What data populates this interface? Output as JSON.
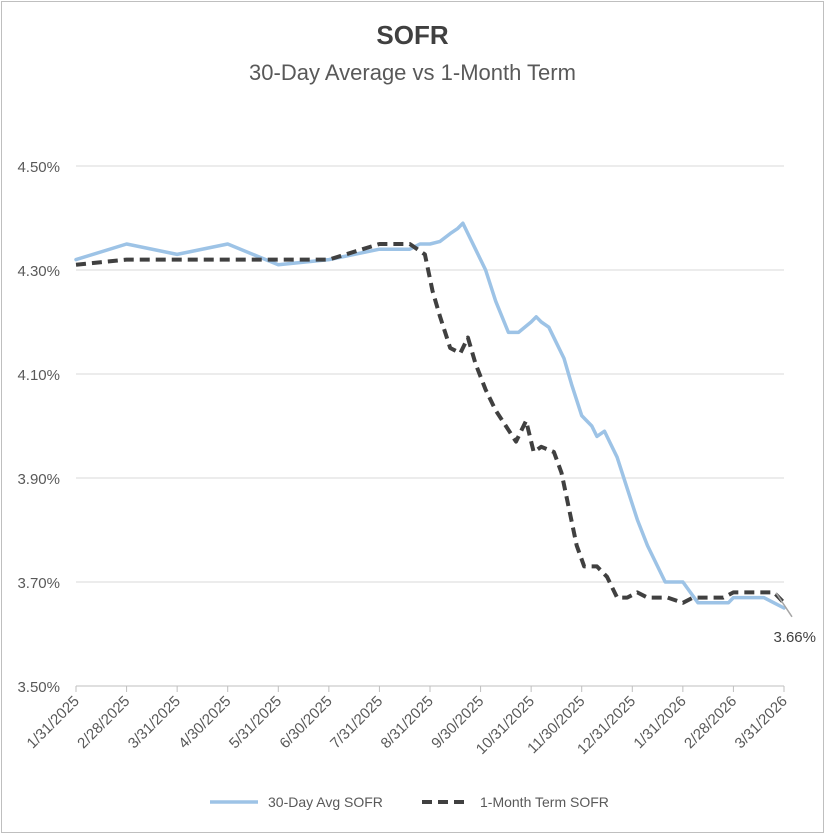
{
  "chart_data": {
    "type": "line",
    "title": "SOFR",
    "subtitle": "30-Day Average vs 1-Month Term",
    "ylim": [
      3.5,
      4.5
    ],
    "yticks": [
      3.5,
      3.7,
      3.9,
      4.1,
      4.3,
      4.5
    ],
    "ytick_labels": [
      "3.50%",
      "3.70%",
      "3.90%",
      "4.10%",
      "4.30%",
      "4.50%"
    ],
    "xlim": [
      0,
      14
    ],
    "xtick_labels": [
      "1/31/2025",
      "2/28/2025",
      "3/31/2025",
      "4/30/2025",
      "5/31/2025",
      "6/30/2025",
      "7/31/2025",
      "8/31/2025",
      "9/30/2025",
      "10/31/2025",
      "11/30/2025",
      "12/31/2025",
      "1/31/2026",
      "2/28/2026",
      "3/31/2026"
    ],
    "grid": true,
    "legend_position": "bottom",
    "annotation": {
      "text": "3.66%",
      "x": 14,
      "y": 3.66
    },
    "series": [
      {
        "name": "30-Day Avg SOFR",
        "color": "#9dc3e6",
        "style": "solid",
        "points": [
          [
            0,
            4.32
          ],
          [
            1,
            4.35
          ],
          [
            2,
            4.33
          ],
          [
            3,
            4.35
          ],
          [
            4,
            4.31
          ],
          [
            5,
            4.32
          ],
          [
            6,
            4.34
          ],
          [
            6.6,
            4.34
          ],
          [
            6.8,
            4.35
          ],
          [
            7.0,
            4.35
          ],
          [
            7.2,
            4.355
          ],
          [
            7.4,
            4.37
          ],
          [
            7.55,
            4.38
          ],
          [
            7.65,
            4.39
          ],
          [
            7.75,
            4.37
          ],
          [
            7.9,
            4.34
          ],
          [
            8.1,
            4.3
          ],
          [
            8.3,
            4.24
          ],
          [
            8.55,
            4.18
          ],
          [
            8.75,
            4.18
          ],
          [
            9.0,
            4.2
          ],
          [
            9.1,
            4.21
          ],
          [
            9.2,
            4.2
          ],
          [
            9.35,
            4.19
          ],
          [
            9.5,
            4.16
          ],
          [
            9.65,
            4.13
          ],
          [
            9.8,
            4.08
          ],
          [
            10.0,
            4.02
          ],
          [
            10.2,
            4.0
          ],
          [
            10.3,
            3.98
          ],
          [
            10.45,
            3.99
          ],
          [
            10.55,
            3.97
          ],
          [
            10.7,
            3.94
          ],
          [
            10.9,
            3.88
          ],
          [
            11.1,
            3.82
          ],
          [
            11.3,
            3.77
          ],
          [
            11.5,
            3.73
          ],
          [
            11.65,
            3.7
          ],
          [
            11.8,
            3.7
          ],
          [
            12.0,
            3.7
          ],
          [
            12.15,
            3.68
          ],
          [
            12.3,
            3.66
          ],
          [
            12.6,
            3.66
          ],
          [
            12.9,
            3.66
          ],
          [
            13.0,
            3.67
          ],
          [
            13.3,
            3.67
          ],
          [
            13.6,
            3.67
          ],
          [
            13.8,
            3.66
          ],
          [
            14.0,
            3.65
          ]
        ]
      },
      {
        "name": "1-Month Term SOFR",
        "color": "#404040",
        "style": "dashed",
        "points": [
          [
            0,
            4.31
          ],
          [
            1,
            4.32
          ],
          [
            2,
            4.32
          ],
          [
            3,
            4.32
          ],
          [
            4,
            4.32
          ],
          [
            5,
            4.32
          ],
          [
            6,
            4.35
          ],
          [
            6.6,
            4.35
          ],
          [
            6.9,
            4.33
          ],
          [
            7.05,
            4.26
          ],
          [
            7.2,
            4.21
          ],
          [
            7.4,
            4.15
          ],
          [
            7.6,
            4.14
          ],
          [
            7.75,
            4.17
          ],
          [
            7.9,
            4.12
          ],
          [
            8.1,
            4.07
          ],
          [
            8.3,
            4.03
          ],
          [
            8.5,
            4.0
          ],
          [
            8.7,
            3.97
          ],
          [
            8.9,
            4.01
          ],
          [
            9.05,
            3.95
          ],
          [
            9.2,
            3.96
          ],
          [
            9.45,
            3.95
          ],
          [
            9.6,
            3.91
          ],
          [
            9.75,
            3.84
          ],
          [
            9.9,
            3.77
          ],
          [
            10.05,
            3.73
          ],
          [
            10.3,
            3.73
          ],
          [
            10.5,
            3.71
          ],
          [
            10.7,
            3.67
          ],
          [
            10.9,
            3.67
          ],
          [
            11.1,
            3.68
          ],
          [
            11.3,
            3.67
          ],
          [
            11.5,
            3.67
          ],
          [
            11.7,
            3.67
          ],
          [
            12.0,
            3.66
          ],
          [
            12.2,
            3.67
          ],
          [
            12.5,
            3.67
          ],
          [
            12.8,
            3.67
          ],
          [
            13.0,
            3.68
          ],
          [
            13.3,
            3.68
          ],
          [
            13.6,
            3.68
          ],
          [
            13.8,
            3.68
          ],
          [
            14.0,
            3.66
          ]
        ]
      }
    ]
  }
}
